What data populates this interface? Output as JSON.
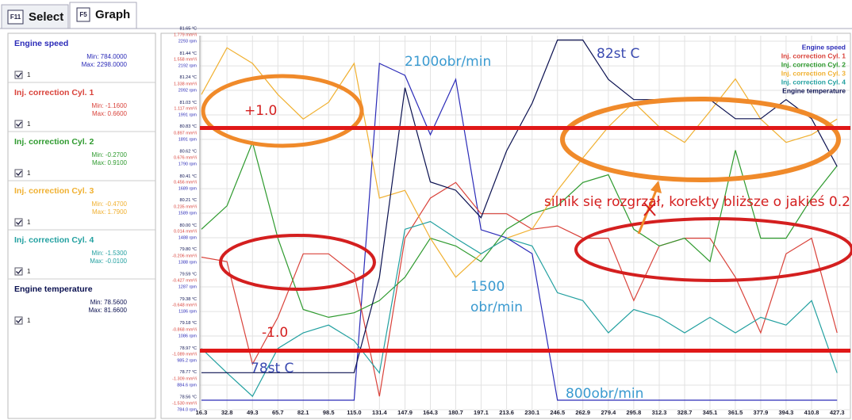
{
  "tabs": [
    {
      "key": "F11",
      "label": "Select"
    },
    {
      "key": "F5",
      "label": "Graph"
    }
  ],
  "panels": [
    {
      "name": "Engine speed",
      "min": "Min: 784.0000",
      "max": "Max: 2298.0000",
      "check": "1"
    },
    {
      "name": "Inj. correction Cyl. 1",
      "min": "Min: -1.1600",
      "max": "Max: 0.6600",
      "check": "1"
    },
    {
      "name": "Inj. correction Cyl. 2",
      "min": "Min: -0.2700",
      "max": "Max: 0.9100",
      "check": "1"
    },
    {
      "name": "Inj. correction Cyl. 3",
      "min": "Min: -0.4700",
      "max": "Max: 1.7900",
      "check": "1"
    },
    {
      "name": "Inj. correction Cyl. 4",
      "min": "Min: -1.5300",
      "max": "Max: -0.0100",
      "check": "1"
    },
    {
      "name": "Engine temperature",
      "min": "Min: 78.5600",
      "max": "Max: 81.6600",
      "check": "1"
    }
  ],
  "chart_data": {
    "type": "line",
    "grid": true,
    "legend": "top-right",
    "xlim": [
      15.3,
      435.9
    ],
    "x": [
      16.3,
      32.8,
      49.3,
      65.7,
      82.1,
      98.5,
      115.0,
      131.4,
      147.9,
      164.3,
      180.7,
      197.1,
      213.6,
      230.1,
      246.5,
      262.9,
      279.4,
      295.8,
      312.3,
      328.7,
      345.1,
      361.5,
      377.9,
      394.3,
      410.8,
      427.3
    ],
    "xticks": [
      16.3,
      32.8,
      49.3,
      65.7,
      82.1,
      98.5,
      {
        "value": 115.0,
        "label": "115.0"
      },
      131.4,
      147.9,
      164.3,
      180.7,
      197.1,
      213.6,
      230.1,
      246.5,
      262.9,
      279.4,
      295.8,
      312.3,
      328.7,
      345.1,
      361.5,
      377.9,
      394.3,
      410.8,
      427.3
    ],
    "rpm_ylim": [
      784.0,
      2293
    ],
    "rpm_ticks": [
      {
        "value": 784.0,
        "label": "784.0 rpm"
      },
      {
        "value": 884.6,
        "label": "884.6 rpm"
      },
      {
        "value": 985.2,
        "label": "985.2 rpm"
      },
      {
        "value": 1086,
        "label": "1086 rpm"
      },
      {
        "value": 1186,
        "label": "1186 rpm"
      },
      {
        "value": 1287,
        "label": "1287 rpm"
      },
      {
        "value": 1388,
        "label": "1388 rpm"
      },
      {
        "value": 1488,
        "label": "1488 rpm"
      },
      {
        "value": 1589,
        "label": "1589 rpm"
      },
      {
        "value": 1689,
        "label": "1689 rpm"
      },
      {
        "value": 1790,
        "label": "1790 rpm"
      },
      {
        "value": 1891,
        "label": "1891 rpm"
      },
      {
        "value": 1991,
        "label": "1991 rpm"
      },
      {
        "value": 2092,
        "label": "2092 rpm"
      },
      {
        "value": 2192,
        "label": "2192 rpm"
      },
      {
        "value": 2293,
        "label": "2293 rpm"
      }
    ],
    "inj_ylim": [
      -1.53,
      1.779
    ],
    "inj_ticks": [
      {
        "value": -1.53,
        "label": "-1.530 mm³/i"
      },
      {
        "value": -1.309,
        "label": "-1.309 mm³/i"
      },
      {
        "value": -1.089,
        "label": "-1.089 mm³/i"
      },
      {
        "value": -0.868,
        "label": "-0.868 mm³/i"
      },
      {
        "value": -0.648,
        "label": "-0.648 mm³/i"
      },
      {
        "value": -0.427,
        "label": "-0.427 mm³/i"
      },
      {
        "value": -0.206,
        "label": "-0.206 mm³/i"
      },
      {
        "value": 0.014,
        "label": "0.014 mm³/i"
      },
      {
        "value": 0.235,
        "label": "0.235 mm³/i"
      },
      {
        "value": 0.456,
        "label": "0.456 mm³/i"
      },
      {
        "value": 0.676,
        "label": "0.676 mm³/i"
      },
      {
        "value": 0.897,
        "label": "0.897 mm³/i"
      },
      {
        "value": 1.117,
        "label": "1.117 mm³/i"
      },
      {
        "value": 1.338,
        "label": "1.338 mm³/i"
      },
      {
        "value": 1.558,
        "label": "1.558 mm³/i"
      },
      {
        "value": 1.779,
        "label": "1.779 mm³/i"
      }
    ],
    "temp_ylim": [
      78.56,
      81.65
    ],
    "temp_ticks": [
      {
        "value": 78.56,
        "label": "78.56 °C"
      },
      {
        "value": 78.77,
        "label": "78.77 °C"
      },
      {
        "value": 78.97,
        "label": "78.97 °C"
      },
      {
        "value": 79.18,
        "label": "79.18 °C"
      },
      {
        "value": 79.38,
        "label": "79.38 °C"
      },
      {
        "value": 79.59,
        "label": "79.59 °C"
      },
      {
        "value": 79.8,
        "label": "79.80 °C"
      },
      {
        "value": 80.0,
        "label": "80.00 °C"
      },
      {
        "value": 80.21,
        "label": "80.21 °C"
      },
      {
        "value": 80.41,
        "label": "80.41 °C"
      },
      {
        "value": 80.62,
        "label": "80.62 °C"
      },
      {
        "value": 80.83,
        "label": "80.83 °C"
      },
      {
        "value": 81.03,
        "label": "81.03 °C"
      },
      {
        "value": 81.24,
        "label": "81.24 °C"
      },
      {
        "value": 81.44,
        "label": "81.44 °C"
      },
      {
        "value": 81.65,
        "label": "81.65 °C"
      }
    ],
    "series": [
      {
        "name": "Engine speed",
        "color": "#2b2bb8",
        "axis": "rpm",
        "values": [
          823,
          823,
          823,
          823,
          823,
          823,
          823,
          2202,
          2153,
          1910,
          2137,
          1521,
          1488,
          1423,
          823,
          823,
          823,
          823,
          823,
          823,
          823,
          823,
          823,
          823,
          823,
          823
        ]
      },
      {
        "name": "Inj. correction Cyl. 1",
        "color": "#d9423a",
        "axis": "inj",
        "values": [
          -0.16,
          -0.2,
          -1.12,
          -0.7,
          -0.13,
          -0.13,
          -0.31,
          -1.41,
          0.01,
          0.37,
          0.51,
          0.23,
          0.23,
          0.09,
          0.12,
          0.01,
          0.01,
          -0.55,
          -0.06,
          0.01,
          0.01,
          -0.34,
          -0.84,
          -0.13,
          0.01,
          -0.84
        ]
      },
      {
        "name": "Inj. correction Cyl. 2",
        "color": "#2e9a2e",
        "axis": "inj",
        "values": [
          0.09,
          0.3,
          0.87,
          0.01,
          -0.63,
          -0.7,
          -0.66,
          -0.55,
          -0.34,
          0.01,
          -0.06,
          -0.2,
          0.09,
          0.23,
          0.3,
          0.51,
          0.58,
          0.09,
          -0.06,
          0.01,
          -0.2,
          0.8,
          0.01,
          0.01,
          0.37,
          0.66
        ]
      },
      {
        "name": "Inj. correction Cyl. 3",
        "color": "#f0b030",
        "axis": "inj",
        "values": [
          1.3,
          1.72,
          1.58,
          1.3,
          1.08,
          1.23,
          1.58,
          0.37,
          0.44,
          0.01,
          -0.34,
          -0.13,
          0.01,
          0.09,
          0.44,
          0.73,
          1.01,
          1.23,
          1.01,
          0.87,
          1.15,
          1.44,
          1.08,
          0.87,
          0.94,
          1.08
        ]
      },
      {
        "name": "Inj. correction Cyl. 4",
        "color": "#22a0a0",
        "axis": "inj",
        "values": [
          -0.98,
          -1.2,
          -1.41,
          -0.98,
          -0.84,
          -0.77,
          -0.91,
          -1.2,
          0.09,
          0.16,
          0.01,
          -0.13,
          0.01,
          -0.06,
          -0.48,
          -0.55,
          -0.84,
          -0.63,
          -0.7,
          -0.84,
          -0.7,
          -0.84,
          -0.7,
          -0.77,
          -0.55,
          -1.2
        ]
      },
      {
        "name": "Engine temperature",
        "color": "#0a1050",
        "axis": "temp",
        "values": [
          78.87,
          78.87,
          78.87,
          78.87,
          78.87,
          78.87,
          78.87,
          79.67,
          81.26,
          80.47,
          80.4,
          80.17,
          80.73,
          81.13,
          81.66,
          81.66,
          81.33,
          81.16,
          81.16,
          81.16,
          81.16,
          81.0,
          81.0,
          81.16,
          81.0,
          80.6
        ]
      }
    ],
    "ref_lines": [
      {
        "value": 1,
        "label": "+1.0"
      },
      {
        "value": -1,
        "label": "-1.0"
      }
    ],
    "annotations": [
      "2100obr/min",
      "82st C",
      "1500",
      "obr/min",
      "78st C",
      "800obr/min",
      "silnik się rozgrzał, korekty bliższe o jakieś 0.2"
    ]
  }
}
